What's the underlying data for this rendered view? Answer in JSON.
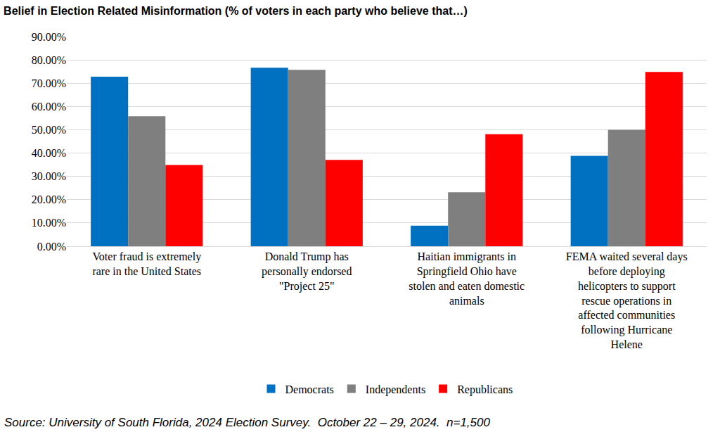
{
  "chart_data": {
    "type": "bar",
    "title": "Belief in Election Related Misinformation (% of voters in each party who believe that…)",
    "categories": [
      "Voter fraud is extremely rare in the United States",
      "Donald Trump has personally endorsed \"Project 25\"",
      "Haitian immigrants in Springfield Ohio have stolen and eaten domestic animals",
      "FEMA waited several days before deploying helicopters to support rescue operations in affected communities following Hurricane Helene"
    ],
    "series": [
      {
        "name": "Democrats",
        "color": "#0070c0",
        "values": [
          72.8,
          76.6,
          8.8,
          38.8
        ]
      },
      {
        "name": "Independents",
        "color": "#7f7f7f",
        "values": [
          55.8,
          75.7,
          23.2,
          50.0
        ]
      },
      {
        "name": "Republicans",
        "color": "#ff0000",
        "values": [
          34.9,
          37.1,
          48.1,
          74.8
        ]
      }
    ],
    "ylim": [
      0,
      90
    ],
    "yticks": [
      {
        "value": 0,
        "label": "0.00%"
      },
      {
        "value": 10,
        "label": "10.00%"
      },
      {
        "value": 20,
        "label": "20.00%"
      },
      {
        "value": 30,
        "label": "30.00%"
      },
      {
        "value": 40,
        "label": "40.00%"
      },
      {
        "value": 50,
        "label": "50.00%"
      },
      {
        "value": 60,
        "label": "60.00%"
      },
      {
        "value": 70,
        "label": "70.00%"
      },
      {
        "value": 80,
        "label": "80.00%"
      },
      {
        "value": 90,
        "label": "90.00%"
      }
    ],
    "grid": true,
    "legend": "bottom",
    "annotations": [
      "Source: University of South Florida, 2024 Election Survey.  October 22 – 29, 2024.  n=1,500"
    ]
  }
}
